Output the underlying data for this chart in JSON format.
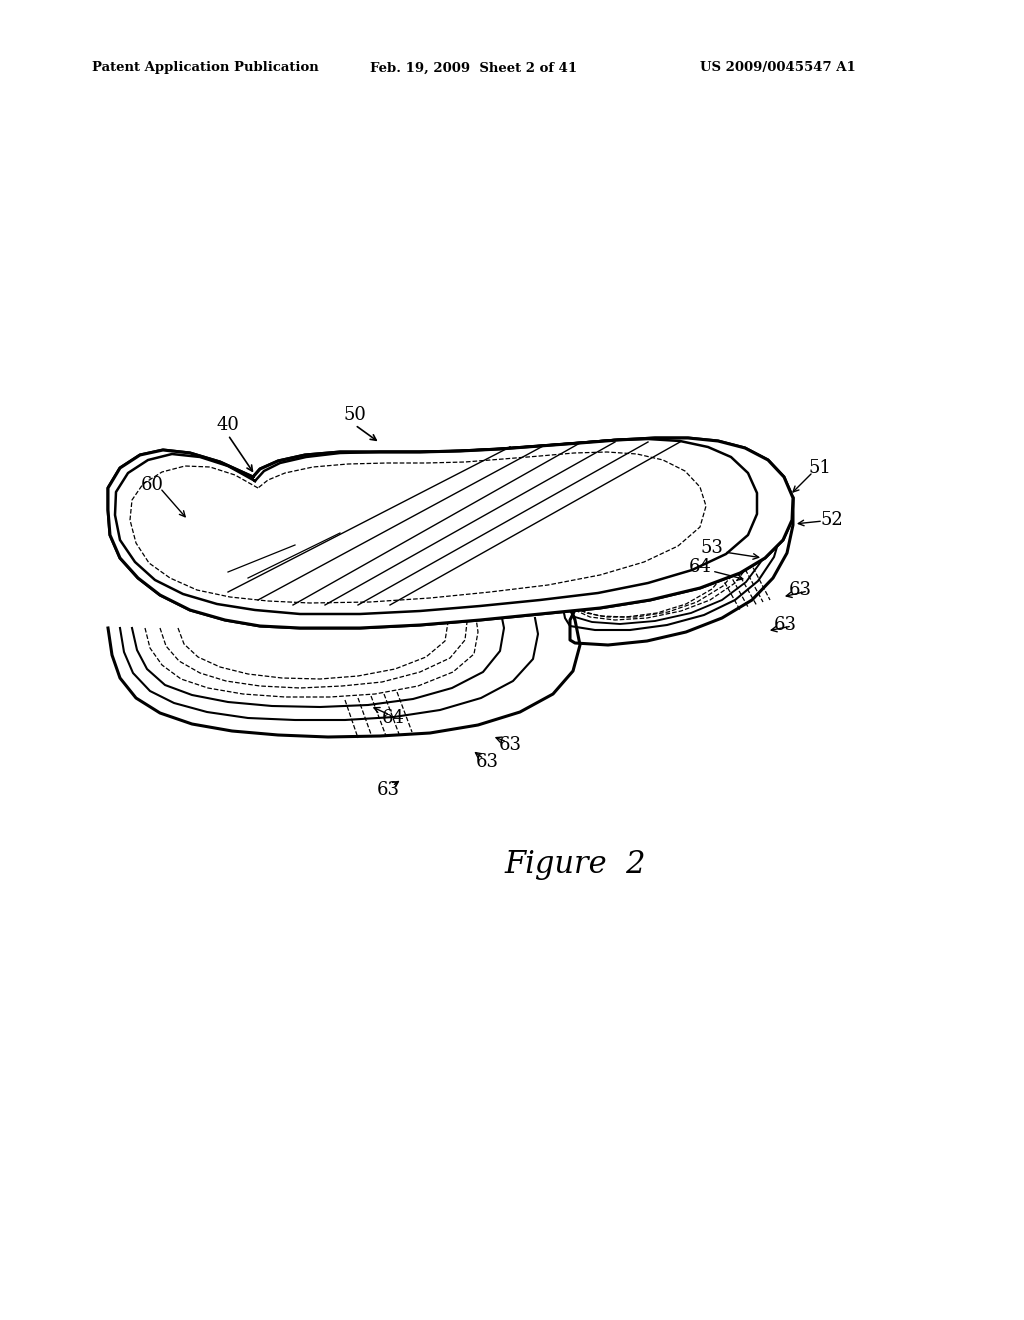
{
  "background_color": "#ffffff",
  "header_left": "Patent Application Publication",
  "header_mid": "Feb. 19, 2009  Sheet 2 of 41",
  "header_right": "US 2009/0045547 A1",
  "figure_label": "Figure  2",
  "color_main": "#000000",
  "lw_outer": 2.2,
  "lw_mid": 1.5,
  "lw_thin": 1.0,
  "lw_dash": 0.9
}
